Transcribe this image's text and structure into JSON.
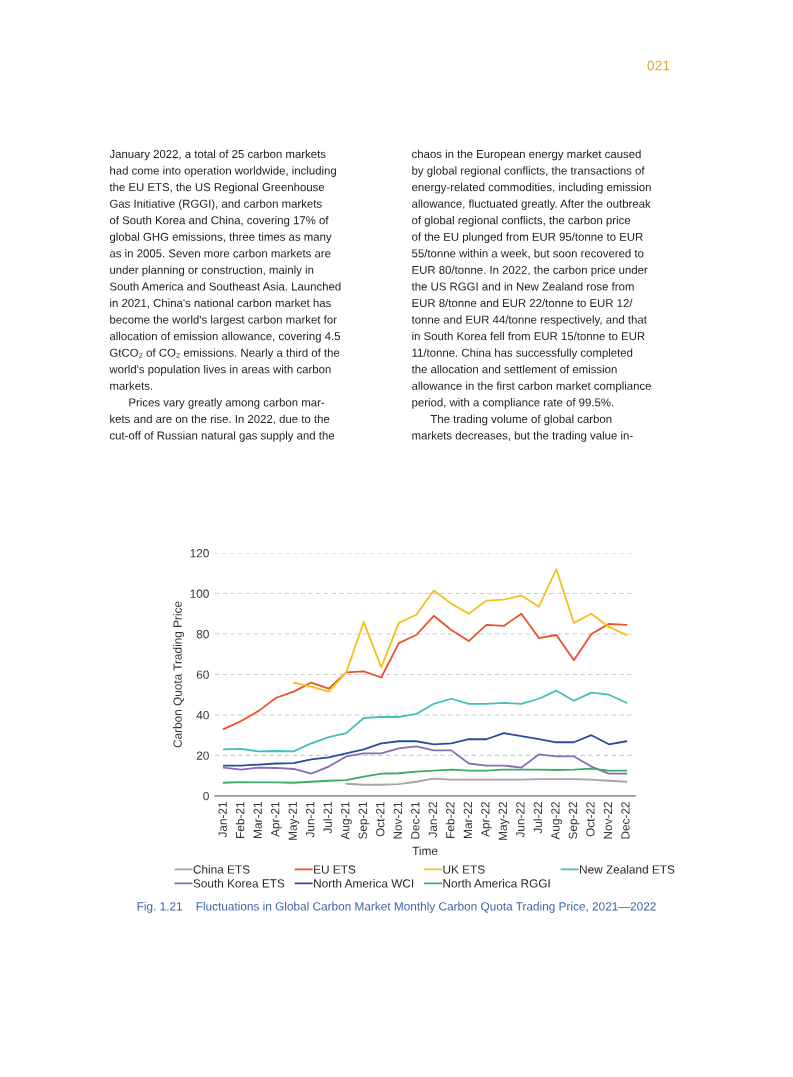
{
  "chart_data": {
    "type": "line",
    "title": "Fig. 1.21    Fluctuations in Global Carbon Market Monthly Carbon Quota Trading Price, 2021—2022",
    "xlabel": "Time",
    "ylabel": "Carbon Quota Trading Price",
    "categories": [
      "Jan-21",
      "Feb-21",
      "Mar-21",
      "Apr-21",
      "May-21",
      "Jun-21",
      "Jul-21",
      "Aug-21",
      "Sep-21",
      "Oct-21",
      "Nov-21",
      "Dec-21",
      "Jan-22",
      "Feb-22",
      "Mar-22",
      "Apr-22",
      "May-22",
      "Jun-22",
      "Jul-22",
      "Aug-22",
      "Sep-22",
      "Oct-22",
      "Nov-22",
      "Dec-22"
    ],
    "series": [
      {
        "name": "China ETS",
        "color": "#a6a6a6",
        "values": [
          null,
          null,
          null,
          null,
          null,
          null,
          null,
          6,
          5.5,
          5.5,
          5.8,
          7,
          8.5,
          8,
          8,
          8,
          8,
          8,
          8.3,
          8.3,
          8.3,
          8,
          7.5,
          7
        ]
      },
      {
        "name": "EU ETS",
        "color": "#e8532b",
        "values": [
          33,
          37,
          42,
          48.5,
          51.5,
          56,
          53,
          61,
          61.5,
          58.5,
          75.5,
          79.5,
          89,
          82,
          76.5,
          84.5,
          84,
          90,
          78,
          79.5,
          67,
          80,
          85,
          84.5
        ]
      },
      {
        "name": "UK ETS",
        "color": "#f2c21b",
        "values": [
          null,
          null,
          null,
          null,
          56,
          54,
          51.5,
          61,
          86,
          63.5,
          85.5,
          89.5,
          101.5,
          95,
          90,
          96.5,
          97,
          99,
          93.5,
          112,
          85.5,
          90,
          83.5,
          79.5
        ]
      },
      {
        "name": "New Zealand ETS",
        "color": "#3fbfbf",
        "values": [
          23,
          23.2,
          22,
          22.2,
          22,
          26,
          29,
          31,
          38.5,
          39,
          39,
          40.5,
          45.5,
          48,
          45.5,
          45.5,
          46,
          45.5,
          48,
          52,
          47,
          51,
          50,
          46
        ]
      },
      {
        "name": "South Korea ETS",
        "color": "#8a6bb5",
        "values": [
          14,
          13,
          14,
          13.8,
          13.3,
          11,
          14.5,
          19.5,
          21,
          21,
          23.5,
          24.5,
          22.5,
          22.5,
          16,
          15,
          15,
          14,
          20.5,
          19.5,
          19.5,
          14.5,
          11,
          11
        ]
      },
      {
        "name": "North America WCI",
        "color": "#2b4c9b",
        "values": [
          15,
          15,
          15.5,
          16,
          16.2,
          18,
          19,
          21,
          23,
          26,
          27,
          27,
          25.5,
          26,
          28,
          28,
          31,
          29.5,
          28,
          26.5,
          26.5,
          30,
          25.5,
          27
        ]
      },
      {
        "name": "North America RGGI",
        "color": "#3aab6b",
        "values": [
          6.5,
          6.8,
          6.7,
          6.7,
          6.5,
          7,
          7.5,
          7.8,
          9.5,
          11,
          11.2,
          12,
          12.5,
          13,
          12.5,
          12.5,
          13,
          13,
          13,
          12.8,
          13,
          13.5,
          12.5,
          12.5
        ]
      }
    ],
    "ylim": [
      0,
      120
    ],
    "yticks": [
      0,
      20,
      40,
      60,
      80,
      100,
      120
    ],
    "grid": "y",
    "legend": "bottom",
    "marker": "none",
    "line_style": "solid",
    "annotations": [
      "021",
      "January 2022, a total of 25 carbon markets\nhad come into operation worldwide, including\nthe EU ETS, the US Regional Greenhouse\nGas Initiative (RGGI), and carbon markets\nof South Korea and China, covering 17% of\nglobal GHG emissions, three times as many\nas in 2005. Seven more carbon markets are\nunder planning or construction, mainly in\nSouth America and Southeast Asia. Launched\nin 2021, China's national carbon market has\nbecome the world's largest carbon market for\nallocation of emission allowance, covering 4.5\nGtCO₂ of CO₂ emissions. Nearly a third of the\nworld's population lives in areas with carbon\nmarkets.\n      Prices vary greatly among carbon mar-\nkets and are on the rise. In 2022, due to the\ncut-off of Russian natural gas supply and the",
      "chaos in the European energy market caused\nby global regional conflicts, the transactions of\nenergy-related commodities, including emission\nallowance, fluctuated greatly. After the outbreak\nof global regional conflicts, the carbon price\nof the EU plunged from EUR 95/tonne to EUR\n55/tonne within a week, but soon recovered to\nEUR 80/tonne. In 2022, the carbon price under\nthe US RGGI and in New Zealand rose from\nEUR 8/tonne and EUR 22/tonne to EUR 12/\ntonne and EUR 44/tonne respectively, and that\nin South Korea fell from EUR 15/tonne to EUR\n11/tonne. China has successfully completed\nthe allocation and settlement of emission\nallowance in the first carbon market compliance\nperiod, with a compliance rate of 99.5%.\n      The trading volume of global carbon\nmarkets decreases, but the trading value in-"
    ]
  }
}
